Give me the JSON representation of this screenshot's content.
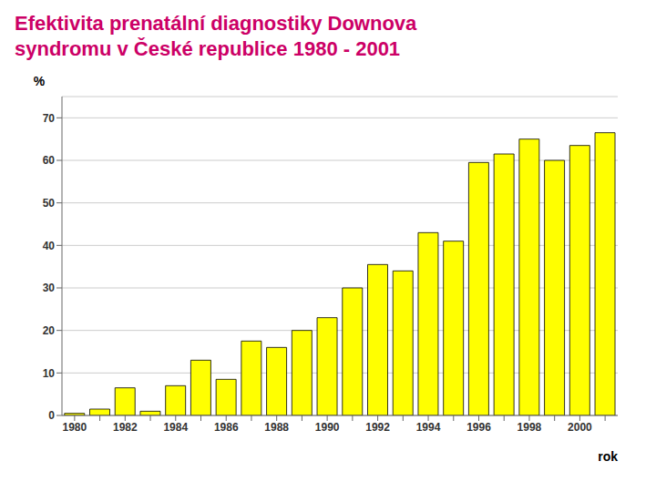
{
  "chart_data": {
    "type": "bar",
    "title": "Efektivita prenatální diagnostiky Downova\nsyndromu v České republice 1980 - 2001",
    "xlabel": "rok",
    "ylabel": "%",
    "categories": [
      "1980",
      null,
      "1982",
      null,
      "1984",
      null,
      "1986",
      null,
      "1988",
      null,
      "1990",
      null,
      "1992",
      null,
      "1994",
      null,
      "1996",
      null,
      "1998",
      null,
      "2000",
      null
    ],
    "values": [
      0.5,
      1.5,
      6.5,
      1.0,
      7.0,
      13.0,
      8.5,
      17.5,
      16.0,
      20.0,
      23.0,
      30.0,
      35.5,
      34.0,
      43.0,
      41.0,
      59.5,
      61.5,
      65.0,
      60.0,
      63.5,
      66.5
    ],
    "color": "#ffff00",
    "ylim": [
      0,
      75
    ],
    "yticks": [
      0,
      10,
      20,
      30,
      40,
      50,
      60,
      70
    ],
    "grid": true
  }
}
